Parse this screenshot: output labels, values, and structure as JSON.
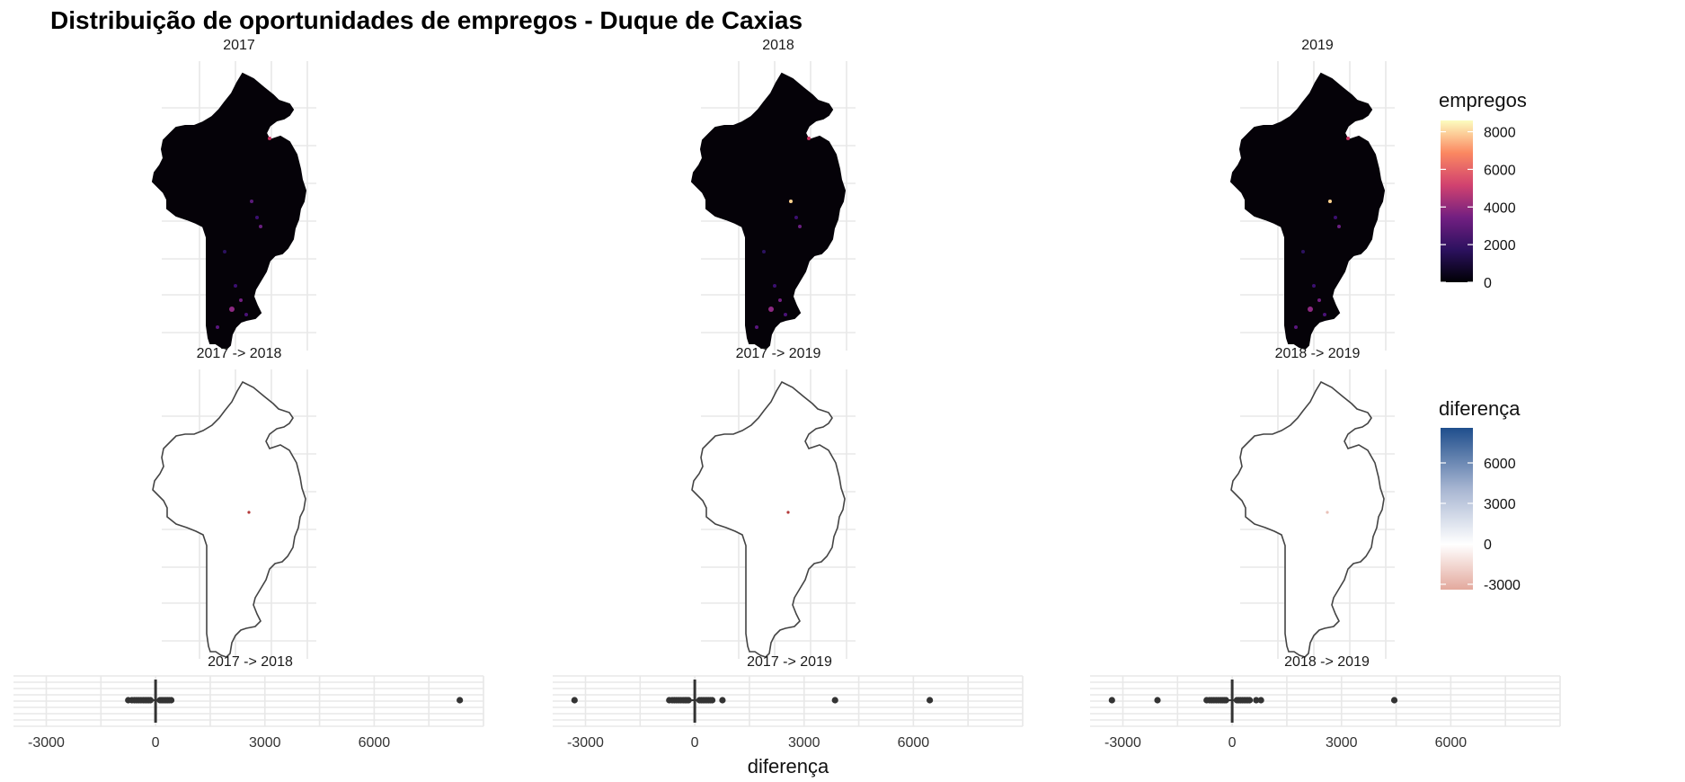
{
  "title": "Distribuição de oportunidades de empregos - Duque de Caxias",
  "colors": {
    "magma": [
      "#000004",
      "#3b0f70",
      "#8c2981",
      "#de4968",
      "#fe9f6d",
      "#fcfdbf"
    ],
    "diverging": [
      "#e6b3a8",
      "#ffffff",
      "#9aaac8",
      "#1f4e8c"
    ],
    "map_outline": "#444444",
    "point": "#333333"
  },
  "chart_data": [
    {
      "type": "heatmap",
      "subtype": "choropleth-map",
      "row": "emprego maps",
      "panels": [
        "2017",
        "2018",
        "2019"
      ],
      "legend": {
        "title": "empregos",
        "ticks": [
          0,
          2000,
          4000,
          6000,
          8000
        ],
        "range": [
          0,
          8600
        ],
        "palette": "magma"
      },
      "grid": true
    },
    {
      "type": "heatmap",
      "subtype": "choropleth-map",
      "row": "difference maps",
      "panels": [
        "2017 -> 2018",
        "2017 -> 2019",
        "2018 -> 2019"
      ],
      "legend": {
        "title": "diferença",
        "ticks": [
          -3000,
          0,
          3000,
          6000
        ],
        "range": [
          -3400,
          8600
        ],
        "palette": "diverging"
      },
      "grid": true
    },
    {
      "type": "scatter",
      "subtype": "boxplot",
      "xlabel": "diferença",
      "xticks": [
        -3000,
        0,
        3000,
        6000
      ],
      "xlim": [
        -3900,
        9000
      ],
      "panels": [
        {
          "title": "2017 -> 2018",
          "median": 0,
          "outliers": [
            -750,
            -650,
            -580,
            -520,
            -460,
            -400,
            -340,
            -290,
            -240,
            -190,
            -140,
            120,
            170,
            220,
            270,
            320,
            370,
            430,
            8350
          ]
        },
        {
          "title": "2017 -> 2019",
          "median": 0,
          "outliers": [
            -3300,
            -700,
            -620,
            -560,
            -500,
            -440,
            -380,
            -320,
            -270,
            -220,
            -170,
            130,
            180,
            230,
            280,
            330,
            380,
            430,
            480,
            760,
            3850,
            6450
          ]
        },
        {
          "title": "2018 -> 2019",
          "median": 0,
          "outliers": [
            -3300,
            -2050,
            -700,
            -620,
            -560,
            -500,
            -440,
            -380,
            -320,
            -270,
            -220,
            -170,
            130,
            180,
            230,
            280,
            330,
            380,
            430,
            480,
            660,
            790,
            4450
          ]
        }
      ],
      "grid": true
    }
  ]
}
